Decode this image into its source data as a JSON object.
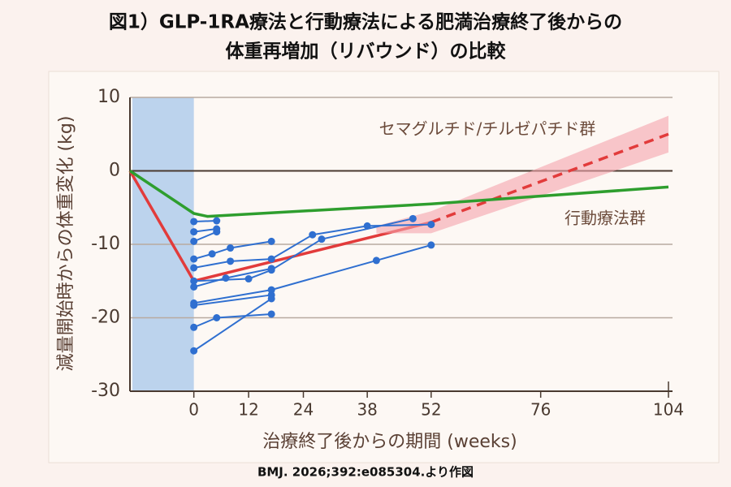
{
  "chart_data": {
    "type": "line",
    "title": [
      "図1）GLP-1RA療法と行動療法による肥満治療終了後からの",
      "体重再増加（リバウンド）の比較"
    ],
    "y_label": "減量開始時からの体重変化 (kg)",
    "x_label": "治療終了後からの期間 (weeks)",
    "source": "BMJ. 2026;392:e085304.より作図",
    "xlim": [
      -14,
      104
    ],
    "xticks": [
      0,
      12,
      24,
      38,
      52,
      76,
      104
    ],
    "ylim": [
      -30,
      10
    ],
    "yticks": [
      10,
      0,
      -10,
      -20,
      -30
    ],
    "grid": true,
    "shade_xrange": [
      -14,
      0
    ],
    "shade_color": "#9fc3ea",
    "series": [
      {
        "name": "セマグルチド/チルゼパチド群",
        "color": "#e23b3b",
        "x": [
          -14,
          0,
          52
        ],
        "values": [
          0,
          -15,
          -7
        ],
        "label_color": "#6b4a3a"
      },
      {
        "color": "#e23b3b",
        "line_style": "dashed",
        "x": [
          52,
          104
        ],
        "values": [
          -7,
          5
        ],
        "band_x": [
          40,
          52,
          104
        ],
        "band_lower": [
          -8.5,
          -8.5,
          2.5
        ],
        "band_upper": [
          -7.5,
          -5.5,
          7.5
        ],
        "band_color": "#f5a3ab"
      },
      {
        "name": "行動療法群",
        "color": "#2e9e2e",
        "x": [
          -14,
          0,
          3,
          52,
          104
        ],
        "values": [
          0,
          -5.8,
          -6.2,
          -4.5,
          -2.2
        ],
        "label_color": "#6b4a3a"
      },
      {
        "color": "#2f6fd0",
        "markers": true,
        "x": [
          0,
          5
        ],
        "values": [
          -6.9,
          -6.8
        ]
      },
      {
        "color": "#2f6fd0",
        "markers": true,
        "x": [
          0,
          5
        ],
        "values": [
          -8.3,
          -7.9
        ]
      },
      {
        "color": "#2f6fd0",
        "markers": true,
        "x": [
          0,
          5
        ],
        "values": [
          -9.6,
          -8.3
        ]
      },
      {
        "color": "#2f6fd0",
        "markers": true,
        "x": [
          0,
          4,
          8,
          17
        ],
        "values": [
          -12,
          -11.3,
          -10.5,
          -9.6
        ]
      },
      {
        "color": "#2f6fd0",
        "markers": true,
        "x": [
          0,
          8,
          17,
          26,
          38,
          52
        ],
        "values": [
          -13.2,
          -12.3,
          -12,
          -8.7,
          -7.5,
          -7.3
        ]
      },
      {
        "color": "#2f6fd0",
        "markers": true,
        "x": [
          0,
          12,
          17,
          28,
          48
        ],
        "values": [
          -15,
          -14.7,
          -13.5,
          -9.3,
          -6.5
        ]
      },
      {
        "color": "#2f6fd0",
        "markers": true,
        "x": [
          0,
          7,
          17
        ],
        "values": [
          -15.8,
          -14.6,
          -13.3
        ]
      },
      {
        "color": "#2f6fd0",
        "markers": true,
        "x": [
          0,
          17,
          40,
          52
        ],
        "values": [
          -18,
          -16.2,
          -12.2,
          -10.1
        ]
      },
      {
        "color": "#2f6fd0",
        "markers": true,
        "x": [
          0,
          17
        ],
        "values": [
          -18.3,
          -16.9
        ]
      },
      {
        "color": "#2f6fd0",
        "markers": true,
        "x": [
          0,
          5,
          17
        ],
        "values": [
          -21.3,
          -20,
          -19.5
        ]
      },
      {
        "color": "#2f6fd0",
        "markers": true,
        "x": [
          0,
          17
        ],
        "values": [
          -24.5,
          -17.4
        ]
      }
    ]
  }
}
